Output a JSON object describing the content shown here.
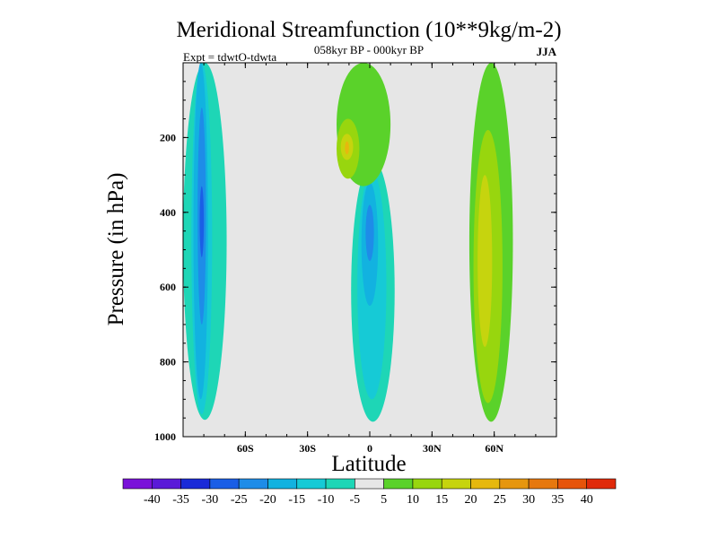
{
  "chart_data": {
    "type": "heatmap",
    "title": "Meridional Streamfunction (10**9kg/m-2)",
    "subtitle": "058kyr BP - 000kyr BP",
    "left_annotation": "Expt = tdwtO-tdwta",
    "right_annotation": "JJA",
    "xlabel": "Latitude",
    "ylabel": "Pressure (in hPa)",
    "xlim": [
      -90,
      90
    ],
    "ylim": [
      1000,
      0
    ],
    "y_reversed": true,
    "xticks": [
      {
        "value": -60,
        "label": "60S"
      },
      {
        "value": -30,
        "label": "30S"
      },
      {
        "value": 0,
        "label": "0"
      },
      {
        "value": 30,
        "label": "30N"
      },
      {
        "value": 60,
        "label": "60N"
      }
    ],
    "yticks": [
      {
        "value": 200,
        "label": "200"
      },
      {
        "value": 400,
        "label": "400"
      },
      {
        "value": 600,
        "label": "600"
      },
      {
        "value": 800,
        "label": "800"
      },
      {
        "value": 1000,
        "label": "1000"
      }
    ],
    "background_color": "#e6e6e6",
    "colorbar": {
      "levels": [
        -40,
        -35,
        -30,
        -25,
        -20,
        -15,
        -10,
        -5,
        5,
        10,
        15,
        20,
        25,
        30,
        35,
        40
      ],
      "labels": [
        "-40",
        "-35",
        "-30",
        "-25",
        "-20",
        "-15",
        "-10",
        "-5",
        "5",
        "10",
        "15",
        "20",
        "25",
        "30",
        "35",
        "40"
      ],
      "colors": [
        "#7a12d9",
        "#5a1ad8",
        "#1a2ad8",
        "#1a5ee6",
        "#1e8ce8",
        "#12b2e0",
        "#16cad6",
        "#1ed6b6",
        "#e6e6e6",
        "#5ad22a",
        "#98d60e",
        "#c6d40e",
        "#e6b80e",
        "#e6960e",
        "#e6780e",
        "#e6540a",
        "#e02a0a"
      ]
    },
    "contour_regions": [
      {
        "name": "sh-strip",
        "band": "-10",
        "color": "#1ed6b6",
        "lat": [
          -90,
          -69
        ],
        "p": [
          0,
          955
        ]
      },
      {
        "name": "sh-core-outer",
        "band": "-15",
        "color": "#16cad6",
        "lat": [
          -86,
          -76
        ],
        "p": [
          0,
          940
        ]
      },
      {
        "name": "sh-core",
        "band": "-20",
        "color": "#12b2e0",
        "lat": [
          -85,
          -78
        ],
        "p": [
          0,
          900
        ]
      },
      {
        "name": "sh-core-inner",
        "band": "-25",
        "color": "#1e8ce8",
        "lat": [
          -83,
          -79
        ],
        "p": [
          120,
          700
        ]
      },
      {
        "name": "sh-min",
        "band": "-30",
        "color": "#1a5ee6",
        "lat": [
          -82,
          -80
        ],
        "p": [
          330,
          520
        ]
      },
      {
        "name": "eq-plume",
        "band": "-10",
        "color": "#1ed6b6",
        "lat": [
          -9,
          12
        ],
        "p": [
          260,
          960
        ]
      },
      {
        "name": "eq-plume-15",
        "band": "-15",
        "color": "#16cad6",
        "lat": [
          -6,
          8
        ],
        "p": [
          290,
          900
        ]
      },
      {
        "name": "eq-plume-20",
        "band": "-20",
        "color": "#12b2e0",
        "lat": [
          -4,
          4
        ],
        "p": [
          320,
          650
        ]
      },
      {
        "name": "eq-plume-25",
        "band": "-25",
        "color": "#1e8ce8",
        "lat": [
          -2,
          2
        ],
        "p": [
          380,
          530
        ]
      },
      {
        "name": "nh-col-pos",
        "band": "10",
        "color": "#5ad22a",
        "lat": [
          48,
          69
        ],
        "p": [
          0,
          960
        ]
      },
      {
        "name": "nh-col-pos-15",
        "band": "15",
        "color": "#98d60e",
        "lat": [
          50,
          64
        ],
        "p": [
          180,
          910
        ]
      },
      {
        "name": "nh-col-pos-20",
        "band": "20",
        "color": "#c6d40e",
        "lat": [
          52,
          59
        ],
        "p": [
          300,
          760
        ]
      },
      {
        "name": "ne-upper-pos",
        "band": "10",
        "color": "#5ad22a",
        "lat": [
          -16,
          10
        ],
        "p": [
          0,
          330
        ]
      },
      {
        "name": "ne-upper-15",
        "band": "15",
        "color": "#98d60e",
        "lat": [
          -16,
          -5
        ],
        "p": [
          150,
          310
        ]
      },
      {
        "name": "ne-upper-20",
        "band": "20",
        "color": "#c6d40e",
        "lat": [
          -14,
          -8
        ],
        "p": [
          190,
          260
        ]
      },
      {
        "name": "ne-upper-25",
        "band": "25",
        "color": "#e6b80e",
        "lat": [
          -12,
          -10
        ],
        "p": [
          210,
          245
        ]
      }
    ]
  }
}
